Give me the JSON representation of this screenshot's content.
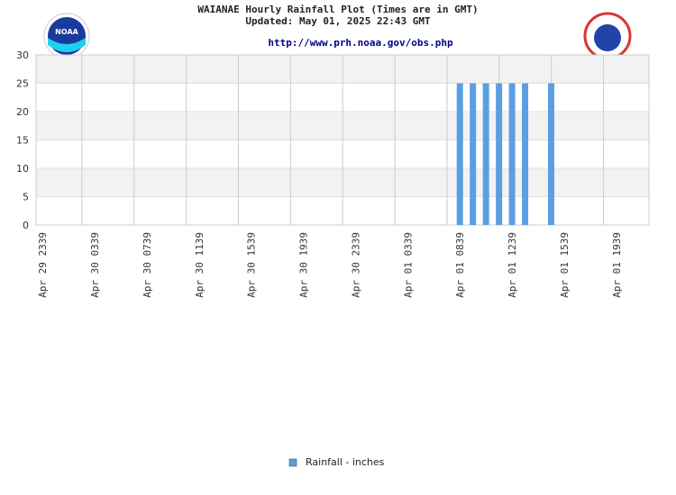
{
  "chart_data": {
    "type": "bar",
    "title": "WAIANAE Hourly Rainfall Plot (Times are in GMT)",
    "subtitle": "Updated: May 01, 2025 22:43 GMT",
    "link": "http://www.prh.noaa.gov/obs.php",
    "categories": [
      "Apr 29 2339",
      null,
      null,
      null,
      "Apr 30 0339",
      null,
      null,
      null,
      "Apr 30 0739",
      null,
      null,
      null,
      "Apr 30 1139",
      null,
      null,
      null,
      "Apr 30 1539",
      null,
      null,
      null,
      "Apr 30 1939",
      null,
      null,
      null,
      "Apr 30 2339",
      null,
      null,
      null,
      "Apr 01 0339",
      null,
      null,
      null,
      "Apr 01 0839",
      null,
      null,
      null,
      "Apr 01 1239",
      null,
      null,
      null,
      "Apr 01 1539",
      null,
      null,
      null,
      "Apr 01 1939",
      null,
      null
    ],
    "series": [
      {
        "name": "Rainfall - inches",
        "color": "#5b9fe3",
        "values": [
          0,
          0,
          0,
          0,
          0,
          0,
          0,
          0,
          0,
          0,
          0,
          0,
          0,
          0,
          0,
          0,
          0,
          0,
          0,
          0,
          0,
          0,
          0,
          0,
          0,
          0,
          0,
          0,
          0,
          0,
          0,
          0,
          25,
          25,
          25,
          25,
          25,
          25,
          0,
          25,
          0,
          0,
          0,
          0,
          0,
          0,
          0
        ]
      }
    ],
    "ylim": [
      0,
      30
    ],
    "yticks": [
      0,
      5,
      10,
      15,
      20,
      25,
      30
    ],
    "grid": true
  }
}
